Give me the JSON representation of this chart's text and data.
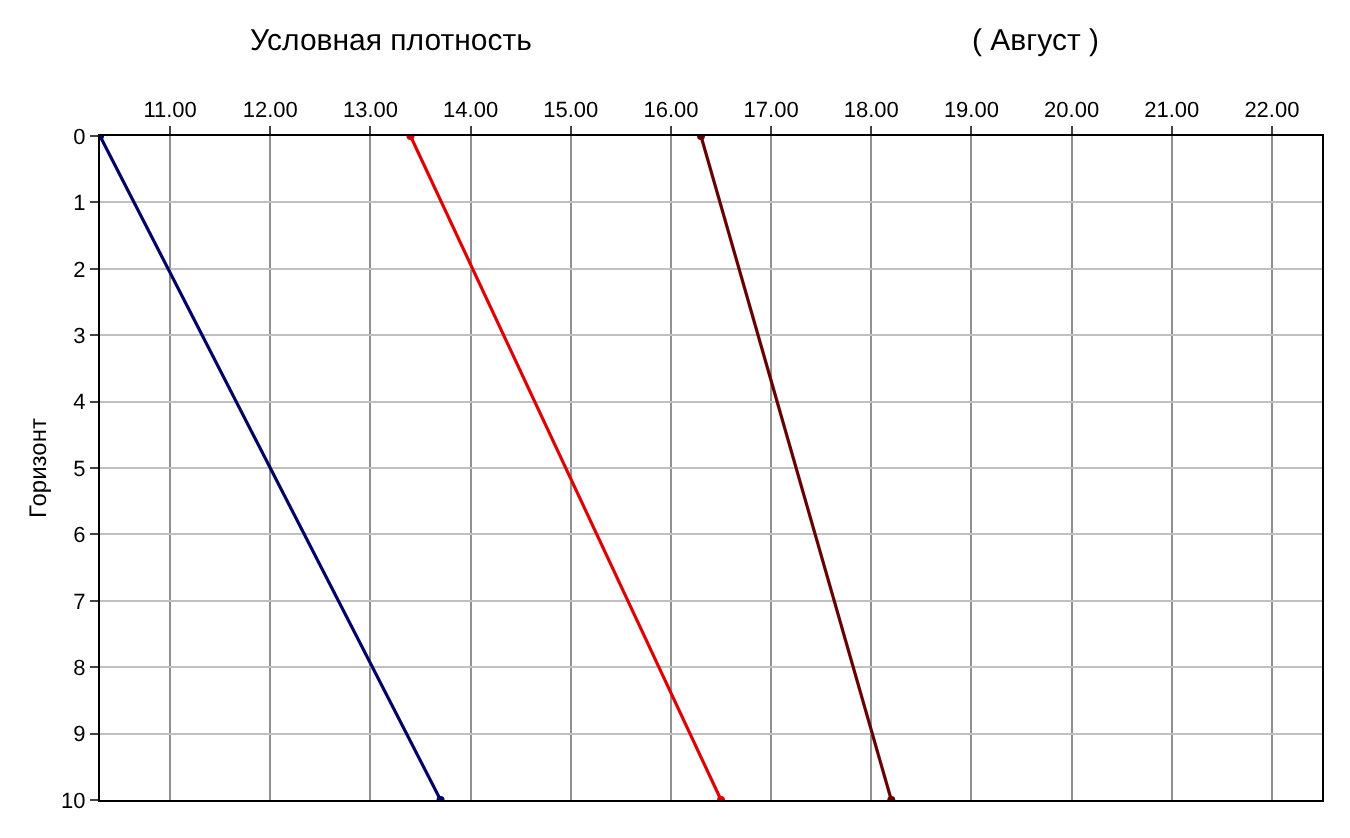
{
  "chart_data": {
    "type": "line",
    "title": "Условная плотность",
    "subtitle": "( Август )",
    "ylabel": "Горизонт",
    "xlim": [
      10.3,
      22.5
    ],
    "xticks": [
      {
        "value": 11,
        "label": "11.00"
      },
      {
        "value": 12,
        "label": "12.00"
      },
      {
        "value": 13,
        "label": "13.00"
      },
      {
        "value": 14,
        "label": "14.00"
      },
      {
        "value": 15,
        "label": "15.00"
      },
      {
        "value": 16,
        "label": "16.00"
      },
      {
        "value": 17,
        "label": "17.00"
      },
      {
        "value": 18,
        "label": "18.00"
      },
      {
        "value": 19,
        "label": "19.00"
      },
      {
        "value": 20,
        "label": "20.00"
      },
      {
        "value": 21,
        "label": "21.00"
      },
      {
        "value": 22,
        "label": "22.00"
      }
    ],
    "ylim": [
      10,
      0
    ],
    "yticks": [
      0,
      1,
      2,
      3,
      4,
      5,
      6,
      7,
      8,
      9,
      10
    ],
    "grid": true,
    "marker": "circle",
    "line_style": "solid",
    "series": [
      {
        "color": "#000066",
        "x": [
          10.3,
          13.7
        ],
        "values": [
          0,
          10
        ]
      },
      {
        "color": "#dd0000",
        "x": [
          13.4,
          16.5
        ],
        "values": [
          0,
          10
        ]
      },
      {
        "color": "#660000",
        "x": [
          16.3,
          18.2
        ],
        "values": [
          0,
          10
        ]
      }
    ]
  }
}
